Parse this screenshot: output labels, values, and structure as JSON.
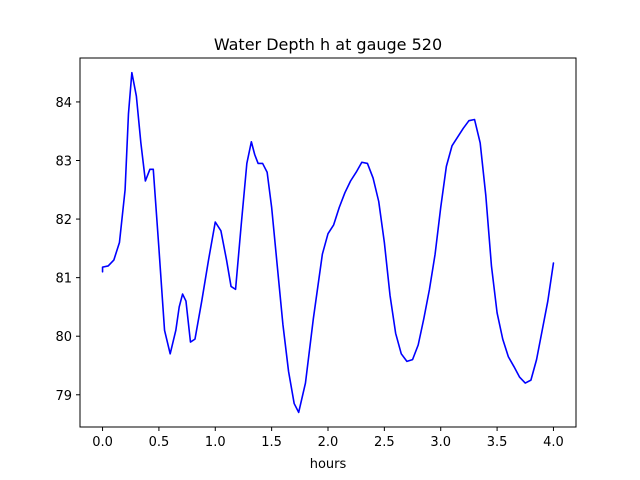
{
  "chart_data": {
    "type": "line",
    "title": "Water Depth h at gauge 520",
    "xlabel": "hours",
    "ylabel": "",
    "xlim": [
      -0.2,
      4.2
    ],
    "ylim": [
      78.45,
      84.75
    ],
    "xticks": [
      0.0,
      0.5,
      1.0,
      1.5,
      2.0,
      2.5,
      3.0,
      3.5,
      4.0
    ],
    "xtick_labels": [
      "0.0",
      "0.5",
      "1.0",
      "1.5",
      "2.0",
      "2.5",
      "3.0",
      "3.5",
      "4.0"
    ],
    "yticks": [
      79,
      80,
      81,
      82,
      83,
      84
    ],
    "ytick_labels": [
      "79",
      "80",
      "81",
      "82",
      "83",
      "84"
    ],
    "grid": false,
    "series": [
      {
        "color": "#0000ff",
        "x": [
          0.0,
          0.0,
          0.05,
          0.1,
          0.15,
          0.2,
          0.23,
          0.26,
          0.3,
          0.34,
          0.38,
          0.42,
          0.45,
          0.5,
          0.55,
          0.6,
          0.65,
          0.68,
          0.71,
          0.74,
          0.78,
          0.82,
          0.88,
          0.94,
          1.0,
          1.05,
          1.1,
          1.14,
          1.18,
          1.23,
          1.28,
          1.32,
          1.35,
          1.38,
          1.42,
          1.46,
          1.5,
          1.55,
          1.6,
          1.65,
          1.7,
          1.74,
          1.8,
          1.87,
          1.95,
          2.0,
          2.05,
          2.1,
          2.15,
          2.2,
          2.25,
          2.3,
          2.35,
          2.4,
          2.45,
          2.5,
          2.55,
          2.6,
          2.65,
          2.7,
          2.75,
          2.8,
          2.85,
          2.9,
          2.95,
          3.0,
          3.05,
          3.1,
          3.15,
          3.2,
          3.25,
          3.3,
          3.35,
          3.4,
          3.45,
          3.5,
          3.55,
          3.6,
          3.65,
          3.7,
          3.75,
          3.8,
          3.85,
          3.9,
          3.95,
          4.0
        ],
        "y": [
          81.1,
          81.18,
          81.2,
          81.3,
          81.6,
          82.5,
          83.8,
          84.5,
          84.1,
          83.3,
          82.65,
          82.85,
          82.85,
          81.5,
          80.1,
          79.7,
          80.1,
          80.5,
          80.72,
          80.6,
          79.9,
          79.95,
          80.6,
          81.3,
          81.95,
          81.8,
          81.3,
          80.85,
          80.8,
          81.9,
          82.95,
          83.32,
          83.1,
          82.95,
          82.95,
          82.8,
          82.2,
          81.2,
          80.2,
          79.4,
          78.85,
          78.7,
          79.2,
          80.3,
          81.4,
          81.75,
          81.9,
          82.2,
          82.45,
          82.65,
          82.8,
          82.97,
          82.95,
          82.7,
          82.3,
          81.6,
          80.7,
          80.05,
          79.7,
          79.57,
          79.6,
          79.85,
          80.3,
          80.8,
          81.4,
          82.2,
          82.9,
          83.25,
          83.4,
          83.55,
          83.68,
          83.7,
          83.3,
          82.4,
          81.2,
          80.4,
          79.95,
          79.65,
          79.48,
          79.3,
          79.2,
          79.25,
          79.6,
          80.1,
          80.6,
          81.25
        ]
      }
    ]
  }
}
